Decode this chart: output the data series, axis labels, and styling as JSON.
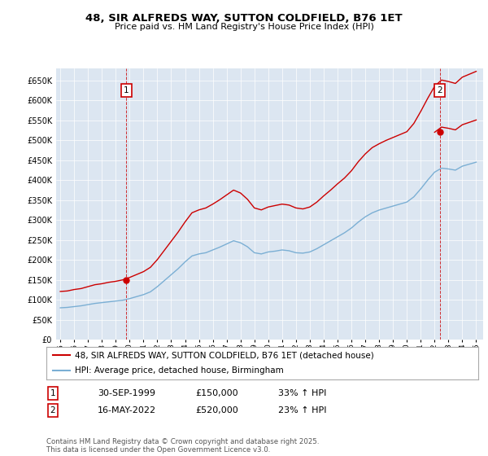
{
  "title": "48, SIR ALFREDS WAY, SUTTON COLDFIELD, B76 1ET",
  "subtitle": "Price paid vs. HM Land Registry's House Price Index (HPI)",
  "ylim": [
    0,
    680000
  ],
  "yticks": [
    0,
    50000,
    100000,
    150000,
    200000,
    250000,
    300000,
    350000,
    400000,
    450000,
    500000,
    550000,
    600000,
    650000
  ],
  "plot_bg_color": "#dce6f1",
  "line1_color": "#cc0000",
  "line2_color": "#7bafd4",
  "sale1_x": 1999.75,
  "sale1_y": 150000,
  "sale2_x": 2022.37,
  "sale2_y": 520000,
  "vline1_x": 1999.75,
  "vline2_x": 2022.37,
  "legend_line1": "48, SIR ALFREDS WAY, SUTTON COLDFIELD, B76 1ET (detached house)",
  "legend_line2": "HPI: Average price, detached house, Birmingham",
  "annotation1_label": "1",
  "annotation2_label": "2",
  "table_row1": [
    "1",
    "30-SEP-1999",
    "£150,000",
    "33% ↑ HPI"
  ],
  "table_row2": [
    "2",
    "16-MAY-2022",
    "£520,000",
    "23% ↑ HPI"
  ],
  "footer": "Contains HM Land Registry data © Crown copyright and database right 2025.\nThis data is licensed under the Open Government Licence v3.0.",
  "xmin": 1994.7,
  "xmax": 2025.5,
  "hpi_index": [
    100,
    101,
    104,
    106,
    110,
    114,
    116,
    119,
    121,
    124,
    129,
    135,
    141,
    150,
    166,
    185,
    204,
    223,
    244,
    263,
    269,
    273,
    281,
    290,
    300,
    310,
    304,
    291,
    273,
    269,
    275,
    278,
    281,
    279,
    273,
    271,
    275,
    285,
    298,
    310,
    323,
    335,
    350,
    369,
    385,
    398,
    406,
    413,
    419,
    425,
    431,
    448,
    473,
    500,
    525,
    538,
    535,
    531,
    544,
    550,
    556
  ],
  "years_hpi": [
    1995.0,
    1995.5,
    1996.0,
    1996.5,
    1997.0,
    1997.5,
    1998.0,
    1998.5,
    1999.0,
    1999.5,
    2000.0,
    2000.5,
    2001.0,
    2001.5,
    2002.0,
    2002.5,
    2003.0,
    2003.5,
    2004.0,
    2004.5,
    2005.0,
    2005.5,
    2006.0,
    2006.5,
    2007.0,
    2007.5,
    2008.0,
    2008.5,
    2009.0,
    2009.5,
    2010.0,
    2010.5,
    2011.0,
    2011.5,
    2012.0,
    2012.5,
    2013.0,
    2013.5,
    2014.0,
    2014.5,
    2015.0,
    2015.5,
    2016.0,
    2016.5,
    2017.0,
    2017.5,
    2018.0,
    2018.5,
    2019.0,
    2019.5,
    2020.0,
    2020.5,
    2021.0,
    2021.5,
    2022.0,
    2022.5,
    2023.0,
    2023.5,
    2024.0,
    2024.5,
    2025.0
  ],
  "hpi_values": [
    80000,
    81000,
    83000,
    85000,
    88000,
    91000,
    93000,
    95000,
    97000,
    99000,
    103000,
    108000,
    113000,
    120000,
    133000,
    148000,
    163000,
    178000,
    195000,
    210000,
    215000,
    218000,
    225000,
    232000,
    240000,
    248000,
    243000,
    233000,
    218000,
    215000,
    220000,
    222000,
    225000,
    223000,
    218000,
    217000,
    220000,
    228000,
    238000,
    248000,
    258000,
    268000,
    280000,
    295000,
    308000,
    318000,
    325000,
    330000,
    335000,
    340000,
    345000,
    358000,
    378000,
    400000,
    420000,
    430000,
    428000,
    425000,
    435000,
    440000,
    445000
  ],
  "sale1_hpi_idx": 9,
  "sale2_hpi_idx": 54
}
